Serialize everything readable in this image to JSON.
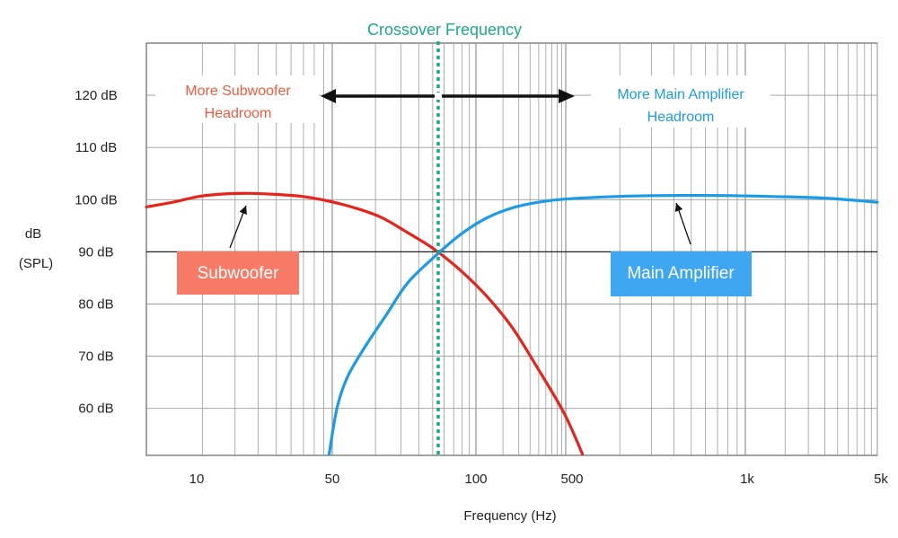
{
  "chart_data": {
    "type": "line",
    "title": "Crossover Frequency",
    "xlabel": "Frequency (Hz)",
    "ylabel": [
      "dB",
      "(SPL)"
    ],
    "x_scale": "log",
    "x_ticks": [
      "10",
      "50",
      "100",
      "500",
      "1k",
      "5k"
    ],
    "y_ticks": [
      "120 dB",
      "110 dB",
      "100 dB",
      "90 dB",
      "80 dB",
      "70 dB",
      "60 dB"
    ],
    "y_tick_values": [
      120,
      110,
      100,
      90,
      80,
      70,
      60
    ],
    "ylim": [
      51,
      130
    ],
    "grid": true,
    "reference_line_db": 90,
    "crossover_label": "Crossover Frequency",
    "colors": {
      "subwoofer": "#e8231a",
      "main_amplifier": "#1a9be8",
      "subwoofer_label_bg": "#f77a66",
      "main_label_bg": "#3fa7f2",
      "crossover": "#1aaa88",
      "headroom_sub_text": "#f05a3c",
      "headroom_main_text": "#1a9be8"
    },
    "series": [
      {
        "name": "Subwoofer",
        "points": [
          [
            0,
            98.6
          ],
          [
            0.5,
            99.5
          ],
          [
            1,
            100.6
          ],
          [
            1.5,
            101.1
          ],
          [
            2,
            101.2
          ],
          [
            2.5,
            101.0
          ],
          [
            3,
            100.6
          ],
          [
            3.5,
            99.7
          ],
          [
            4,
            98.4
          ],
          [
            4.5,
            96.6
          ],
          [
            5,
            93.7
          ],
          [
            5.5,
            90.6
          ],
          [
            6,
            86.6
          ],
          [
            6.5,
            81.7
          ],
          [
            7,
            75.6
          ],
          [
            7.5,
            67.6
          ],
          [
            8,
            59.1
          ],
          [
            8.35,
            51.3
          ]
        ]
      },
      {
        "name": "Main Amplifier",
        "points": [
          [
            3.5,
            51.2
          ],
          [
            3.65,
            60.0
          ],
          [
            3.85,
            66.0
          ],
          [
            4.2,
            72.0
          ],
          [
            4.6,
            78.0
          ],
          [
            5.0,
            84.0
          ],
          [
            5.5,
            88.9
          ],
          [
            6.0,
            93.2
          ],
          [
            6.5,
            96.4
          ],
          [
            7.0,
            98.4
          ],
          [
            7.5,
            99.5
          ],
          [
            8.0,
            100.1
          ],
          [
            9.0,
            100.6
          ],
          [
            10.0,
            100.8
          ],
          [
            11.0,
            100.8
          ],
          [
            12.0,
            100.6
          ],
          [
            13.0,
            100.3
          ],
          [
            14.0,
            99.5
          ]
        ]
      }
    ],
    "annotations": {
      "subwoofer_label": "Subwoofer",
      "main_label": "Main Amplifier",
      "sub_headroom": [
        "More Subwoofer",
        "Headroom"
      ],
      "main_headroom": [
        "More Main Amplifier",
        "Headroom"
      ]
    }
  }
}
